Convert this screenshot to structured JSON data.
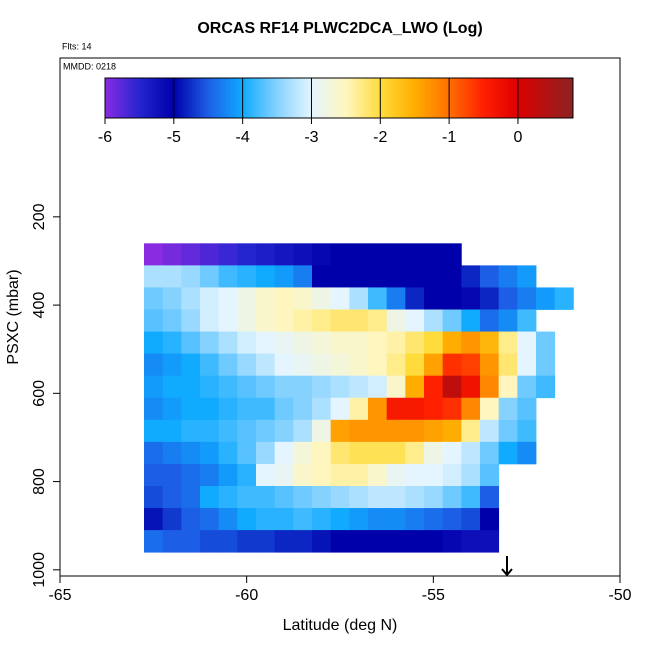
{
  "chart_data": {
    "type": "heatmap",
    "title": "ORCAS RF14 PLWC2DCA_LWO (Log)",
    "annotations": [
      "Flts: 14",
      "MMDD: 0218"
    ],
    "x_label": "Latitude (deg N)",
    "y_label": "PSXC (mbar)",
    "xlim": [
      -65,
      -50
    ],
    "xticks": [
      -65,
      -60,
      -55,
      -50
    ],
    "ylim": [
      1014,
      -160
    ],
    "yticks": [
      200,
      400,
      600,
      800,
      1000
    ],
    "cell_width": 0.5,
    "cell_height": 50,
    "x": [
      -62.5,
      -62,
      -61.5,
      -61,
      -60.5,
      -60,
      -59.5,
      -59,
      -58.5,
      -58,
      -57.5,
      -57,
      -56.5,
      -56,
      -55.5,
      -55,
      -54.5,
      -54,
      -53.5,
      -53,
      -52.5,
      -52,
      -51.5
    ],
    "y": [
      285,
      335,
      385,
      435,
      485,
      535,
      585,
      635,
      685,
      735,
      785,
      835,
      885,
      935
    ],
    "z": [
      [
        -6.0,
        -5.9,
        -5.8,
        -5.7,
        -5.6,
        -5.5,
        -5.4,
        -5.3,
        -5.2,
        -5.1,
        -5.0,
        -5.0,
        -5.0,
        -5.0,
        -5.0,
        -5.0,
        -5.0,
        null,
        null,
        null,
        null,
        null,
        null
      ],
      [
        -3.3,
        -3.3,
        -3.4,
        -3.6,
        -3.8,
        -3.9,
        -4.0,
        -4.1,
        -4.3,
        -5.0,
        -5.0,
        -5.0,
        -5.0,
        -5.0,
        -5.0,
        -5.0,
        -5.0,
        -4.8,
        -4.5,
        -4.3,
        -4.1,
        null,
        null
      ],
      [
        -3.6,
        -3.5,
        -3.3,
        -3.1,
        -3.0,
        -2.8,
        -2.6,
        -2.5,
        -2.6,
        -2.8,
        -3.0,
        -3.3,
        -3.8,
        -4.3,
        -4.8,
        -5.0,
        -5.0,
        -5.1,
        -4.8,
        -4.5,
        -4.3,
        -4.1,
        -3.9
      ],
      [
        -3.7,
        -3.6,
        -3.4,
        -3.1,
        -3.0,
        -2.8,
        -2.6,
        -2.5,
        -2.4,
        -2.3,
        -2.2,
        -2.2,
        -2.3,
        -2.8,
        -3.0,
        -3.3,
        -3.6,
        -4.0,
        -4.4,
        -4.2,
        -3.8,
        null,
        null
      ],
      [
        -4.0,
        -3.9,
        -3.7,
        -3.5,
        -3.3,
        -3.1,
        -3.0,
        -2.9,
        -2.8,
        -2.7,
        -2.6,
        -2.6,
        -2.5,
        -2.4,
        -2.2,
        -2.0,
        -1.5,
        -1.3,
        -1.6,
        -2.3,
        -3.0,
        -3.6,
        null
      ],
      [
        -4.2,
        -4.1,
        -4.0,
        -3.8,
        -3.6,
        -3.4,
        -3.2,
        -3.0,
        -2.9,
        -2.8,
        -2.7,
        -2.6,
        -2.5,
        -2.3,
        -2.0,
        -1.4,
        -0.6,
        -0.7,
        -1.3,
        -2.2,
        -3.0,
        -3.6,
        null
      ],
      [
        -4.1,
        -4.0,
        -4.0,
        -3.9,
        -3.8,
        -3.7,
        -3.6,
        -3.5,
        -3.5,
        -3.4,
        -3.3,
        -3.2,
        -3.1,
        -2.6,
        -1.5,
        -0.5,
        0.3,
        -0.3,
        -1.2,
        -2.5,
        -3.6,
        -3.8,
        null
      ],
      [
        -4.2,
        -4.1,
        -4.0,
        -4.0,
        -3.9,
        -3.8,
        -3.8,
        -3.6,
        -3.5,
        -3.3,
        -3.0,
        -2.4,
        -1.3,
        -0.4,
        -0.4,
        -0.5,
        -0.6,
        -1.2,
        -2.5,
        -3.5,
        -3.7,
        null,
        null
      ],
      [
        -4.0,
        -4.0,
        -3.9,
        -3.9,
        -3.8,
        -3.7,
        -3.6,
        -3.5,
        -3.3,
        -2.8,
        -1.4,
        -1.3,
        -1.3,
        -1.3,
        -1.3,
        -1.4,
        -1.5,
        -2.3,
        -3.2,
        -3.6,
        -3.8,
        null,
        null
      ],
      [
        -4.4,
        -4.3,
        -4.2,
        -4.1,
        -3.9,
        -3.7,
        -3.4,
        -3.0,
        -2.7,
        -2.5,
        -2.2,
        -2.1,
        -2.1,
        -2.1,
        -2.3,
        -2.8,
        -3.0,
        -3.2,
        -3.6,
        -4.0,
        -4.2,
        null,
        null
      ],
      [
        -4.5,
        -4.5,
        -4.4,
        -4.3,
        -4.1,
        -3.9,
        -3.0,
        -2.9,
        -2.6,
        -2.5,
        -2.4,
        -2.4,
        -2.6,
        -2.9,
        -3.0,
        -3.0,
        -3.1,
        -3.3,
        -3.7,
        null,
        null,
        null,
        null
      ],
      [
        -4.6,
        -4.5,
        -4.4,
        -4.0,
        -3.9,
        -3.8,
        -3.8,
        -3.7,
        -3.6,
        -3.5,
        -3.4,
        -3.3,
        -3.2,
        -3.2,
        -3.3,
        -3.4,
        -3.6,
        -3.8,
        -4.5,
        null,
        null,
        null,
        null
      ],
      [
        -4.9,
        -4.7,
        -4.5,
        -4.4,
        -4.2,
        -4.0,
        -3.9,
        -3.9,
        -3.8,
        -3.9,
        -4.0,
        -4.1,
        -4.2,
        -4.2,
        -4.3,
        -4.4,
        -4.5,
        -4.6,
        -5.0,
        null,
        null,
        null,
        null
      ],
      [
        -4.4,
        -4.5,
        -4.5,
        -4.6,
        -4.6,
        -4.7,
        -4.7,
        -4.8,
        -4.8,
        -4.9,
        -5.0,
        -5.0,
        -5.0,
        -5.0,
        -5.0,
        -5.0,
        -5.1,
        -5.2,
        -5.2,
        null,
        null,
        null,
        null
      ]
    ],
    "colorbar_lim": [
      -6,
      0.8
    ],
    "colorbar_ticks": [
      -6,
      -5,
      -4,
      -3,
      -2,
      -1,
      0
    ],
    "colorscale": [
      [
        -6,
        "#8a2be2"
      ],
      [
        -5.5,
        "#2525d0"
      ],
      [
        -5,
        "#0000aa"
      ],
      [
        -4.5,
        "#1c5fe6"
      ],
      [
        -4,
        "#10aaff"
      ],
      [
        -3.5,
        "#86d2ff"
      ],
      [
        -3,
        "#e4f5ff"
      ],
      [
        -2.5,
        "#fff6bf"
      ],
      [
        -2,
        "#ffdc3c"
      ],
      [
        -1.5,
        "#ffad00"
      ],
      [
        -1,
        "#ff7000"
      ],
      [
        -0.5,
        "#ff2000"
      ],
      [
        0,
        "#dd0000"
      ],
      [
        0.8,
        "#8b2323"
      ]
    ]
  }
}
